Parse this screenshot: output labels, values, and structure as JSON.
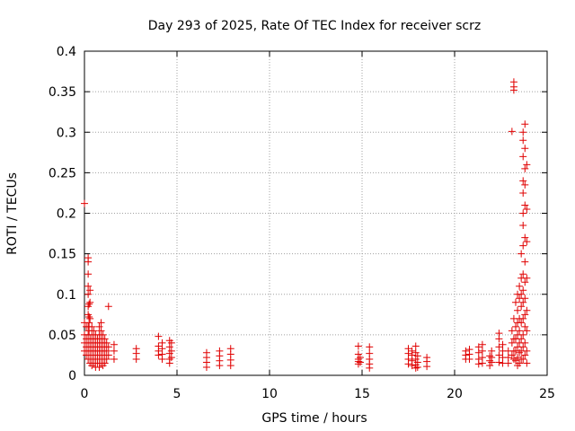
{
  "chart_data": {
    "type": "scatter",
    "title": "Day 293 of 2025, Rate Of TEC Index for receiver scrz",
    "xlabel": "GPS time / hours",
    "ylabel": "ROTI / TECUs",
    "xlim": [
      0,
      25
    ],
    "ylim": [
      0,
      0.4
    ],
    "xticks": [
      0,
      5,
      10,
      15,
      20,
      25
    ],
    "yticks": [
      0,
      0.05,
      0.1,
      0.15,
      0.2,
      0.25,
      0.3,
      0.35,
      0.4
    ],
    "xtick_labels": [
      "0",
      "5",
      "10",
      "15",
      "20",
      "25"
    ],
    "ytick_labels": [
      "0",
      "0.05",
      "0.1",
      "0.15",
      "0.2",
      "0.25",
      "0.3",
      "0.35",
      "0.4"
    ],
    "grid": true,
    "marker": "+",
    "marker_color": "#e00000",
    "points": [
      [
        0.0,
        0.212
      ],
      [
        0.0,
        0.03
      ],
      [
        0.0,
        0.04
      ],
      [
        0.0,
        0.05
      ],
      [
        0.0,
        0.065
      ],
      [
        0.1,
        0.035
      ],
      [
        0.1,
        0.045
      ],
      [
        0.1,
        0.06
      ],
      [
        0.1,
        0.025
      ],
      [
        0.2,
        0.145
      ],
      [
        0.2,
        0.14
      ],
      [
        0.2,
        0.125
      ],
      [
        0.2,
        0.11
      ],
      [
        0.2,
        0.1
      ],
      [
        0.2,
        0.085
      ],
      [
        0.2,
        0.075
      ],
      [
        0.2,
        0.06
      ],
      [
        0.2,
        0.05
      ],
      [
        0.2,
        0.04
      ],
      [
        0.2,
        0.03
      ],
      [
        0.2,
        0.02
      ],
      [
        0.25,
        0.088
      ],
      [
        0.25,
        0.072
      ],
      [
        0.25,
        0.065
      ],
      [
        0.25,
        0.055
      ],
      [
        0.3,
        0.105
      ],
      [
        0.3,
        0.09
      ],
      [
        0.3,
        0.07
      ],
      [
        0.3,
        0.045
      ],
      [
        0.3,
        0.035
      ],
      [
        0.3,
        0.025
      ],
      [
        0.3,
        0.015
      ],
      [
        0.4,
        0.06
      ],
      [
        0.4,
        0.05
      ],
      [
        0.4,
        0.04
      ],
      [
        0.4,
        0.03
      ],
      [
        0.4,
        0.02
      ],
      [
        0.4,
        0.012
      ],
      [
        0.5,
        0.055
      ],
      [
        0.5,
        0.045
      ],
      [
        0.5,
        0.035
      ],
      [
        0.5,
        0.025
      ],
      [
        0.5,
        0.015
      ],
      [
        0.6,
        0.05
      ],
      [
        0.6,
        0.04
      ],
      [
        0.6,
        0.03
      ],
      [
        0.6,
        0.02
      ],
      [
        0.6,
        0.01
      ],
      [
        0.7,
        0.045
      ],
      [
        0.7,
        0.035
      ],
      [
        0.7,
        0.025
      ],
      [
        0.7,
        0.015
      ],
      [
        0.8,
        0.06
      ],
      [
        0.8,
        0.05
      ],
      [
        0.8,
        0.04
      ],
      [
        0.8,
        0.03
      ],
      [
        0.8,
        0.02
      ],
      [
        0.8,
        0.01
      ],
      [
        0.9,
        0.065
      ],
      [
        0.9,
        0.055
      ],
      [
        0.9,
        0.045
      ],
      [
        0.9,
        0.035
      ],
      [
        0.9,
        0.025
      ],
      [
        0.9,
        0.015
      ],
      [
        1.0,
        0.05
      ],
      [
        1.0,
        0.04
      ],
      [
        1.0,
        0.03
      ],
      [
        1.0,
        0.02
      ],
      [
        1.0,
        0.012
      ],
      [
        1.1,
        0.045
      ],
      [
        1.1,
        0.035
      ],
      [
        1.1,
        0.025
      ],
      [
        1.1,
        0.015
      ],
      [
        1.2,
        0.04
      ],
      [
        1.2,
        0.03
      ],
      [
        1.2,
        0.02
      ],
      [
        1.3,
        0.085
      ],
      [
        1.3,
        0.035
      ],
      [
        1.3,
        0.025
      ],
      [
        1.6,
        0.038
      ],
      [
        1.6,
        0.03
      ],
      [
        1.6,
        0.02
      ],
      [
        2.8,
        0.033
      ],
      [
        2.8,
        0.027
      ],
      [
        2.8,
        0.02
      ],
      [
        4.0,
        0.048
      ],
      [
        4.0,
        0.036
      ],
      [
        4.0,
        0.03
      ],
      [
        4.0,
        0.025
      ],
      [
        4.2,
        0.04
      ],
      [
        4.2,
        0.033
      ],
      [
        4.2,
        0.026
      ],
      [
        4.2,
        0.02
      ],
      [
        4.6,
        0.043
      ],
      [
        4.6,
        0.035
      ],
      [
        4.6,
        0.027
      ],
      [
        4.6,
        0.02
      ],
      [
        4.6,
        0.015
      ],
      [
        4.7,
        0.04
      ],
      [
        4.7,
        0.03
      ],
      [
        4.7,
        0.022
      ],
      [
        6.6,
        0.028
      ],
      [
        6.6,
        0.022
      ],
      [
        6.6,
        0.016
      ],
      [
        6.6,
        0.01
      ],
      [
        7.3,
        0.03
      ],
      [
        7.3,
        0.024
      ],
      [
        7.3,
        0.018
      ],
      [
        7.3,
        0.012
      ],
      [
        7.9,
        0.033
      ],
      [
        7.9,
        0.026
      ],
      [
        7.9,
        0.019
      ],
      [
        7.9,
        0.012
      ],
      [
        14.8,
        0.036
      ],
      [
        14.8,
        0.026
      ],
      [
        14.8,
        0.02
      ],
      [
        14.8,
        0.017
      ],
      [
        14.8,
        0.014
      ],
      [
        14.9,
        0.022
      ],
      [
        14.9,
        0.016
      ],
      [
        15.4,
        0.035
      ],
      [
        15.4,
        0.027
      ],
      [
        15.4,
        0.02
      ],
      [
        15.4,
        0.014
      ],
      [
        15.4,
        0.009
      ],
      [
        17.5,
        0.033
      ],
      [
        17.5,
        0.027
      ],
      [
        17.5,
        0.02
      ],
      [
        17.5,
        0.014
      ],
      [
        17.7,
        0.03
      ],
      [
        17.7,
        0.025
      ],
      [
        17.7,
        0.018
      ],
      [
        17.7,
        0.012
      ],
      [
        17.9,
        0.036
      ],
      [
        17.9,
        0.028
      ],
      [
        17.9,
        0.02
      ],
      [
        17.9,
        0.013
      ],
      [
        17.9,
        0.009
      ],
      [
        18.0,
        0.024
      ],
      [
        18.0,
        0.016
      ],
      [
        18.0,
        0.01
      ],
      [
        18.5,
        0.022
      ],
      [
        18.5,
        0.017
      ],
      [
        18.5,
        0.011
      ],
      [
        20.6,
        0.03
      ],
      [
        20.6,
        0.025
      ],
      [
        20.6,
        0.02
      ],
      [
        20.8,
        0.032
      ],
      [
        20.8,
        0.026
      ],
      [
        20.8,
        0.02
      ],
      [
        21.3,
        0.035
      ],
      [
        21.3,
        0.028
      ],
      [
        21.3,
        0.02
      ],
      [
        21.3,
        0.014
      ],
      [
        21.5,
        0.038
      ],
      [
        21.5,
        0.03
      ],
      [
        21.5,
        0.022
      ],
      [
        21.5,
        0.015
      ],
      [
        21.9,
        0.024
      ],
      [
        21.9,
        0.018
      ],
      [
        21.9,
        0.012
      ],
      [
        22.0,
        0.03
      ],
      [
        22.0,
        0.022
      ],
      [
        22.0,
        0.016
      ],
      [
        22.4,
        0.052
      ],
      [
        22.4,
        0.045
      ],
      [
        22.4,
        0.035
      ],
      [
        22.4,
        0.025
      ],
      [
        22.4,
        0.016
      ],
      [
        22.6,
        0.038
      ],
      [
        22.6,
        0.03
      ],
      [
        22.6,
        0.022
      ],
      [
        22.6,
        0.015
      ],
      [
        22.9,
        0.03
      ],
      [
        22.9,
        0.022
      ],
      [
        22.9,
        0.015
      ],
      [
        23.1,
        0.301
      ],
      [
        23.1,
        0.055
      ],
      [
        23.1,
        0.04
      ],
      [
        23.1,
        0.025
      ],
      [
        23.2,
        0.362
      ],
      [
        23.2,
        0.356
      ],
      [
        23.2,
        0.352
      ],
      [
        23.2,
        0.07
      ],
      [
        23.2,
        0.045
      ],
      [
        23.2,
        0.03
      ],
      [
        23.2,
        0.02
      ],
      [
        23.3,
        0.09
      ],
      [
        23.3,
        0.06
      ],
      [
        23.3,
        0.045
      ],
      [
        23.3,
        0.03
      ],
      [
        23.3,
        0.018
      ],
      [
        23.4,
        0.1
      ],
      [
        23.4,
        0.08
      ],
      [
        23.4,
        0.065
      ],
      [
        23.4,
        0.05
      ],
      [
        23.4,
        0.035
      ],
      [
        23.4,
        0.022
      ],
      [
        23.4,
        0.012
      ],
      [
        23.5,
        0.11
      ],
      [
        23.5,
        0.095
      ],
      [
        23.5,
        0.07
      ],
      [
        23.5,
        0.055
      ],
      [
        23.5,
        0.04
      ],
      [
        23.5,
        0.028
      ],
      [
        23.5,
        0.015
      ],
      [
        23.6,
        0.15
      ],
      [
        23.6,
        0.12
      ],
      [
        23.6,
        0.1
      ],
      [
        23.6,
        0.085
      ],
      [
        23.6,
        0.065
      ],
      [
        23.6,
        0.045
      ],
      [
        23.6,
        0.03
      ],
      [
        23.6,
        0.02
      ],
      [
        23.7,
        0.3
      ],
      [
        23.7,
        0.29
      ],
      [
        23.7,
        0.27
      ],
      [
        23.7,
        0.24
      ],
      [
        23.7,
        0.225
      ],
      [
        23.7,
        0.2
      ],
      [
        23.7,
        0.185
      ],
      [
        23.7,
        0.16
      ],
      [
        23.7,
        0.125
      ],
      [
        23.7,
        0.105
      ],
      [
        23.7,
        0.09
      ],
      [
        23.7,
        0.07
      ],
      [
        23.7,
        0.05
      ],
      [
        23.7,
        0.035
      ],
      [
        23.7,
        0.02
      ],
      [
        23.8,
        0.31
      ],
      [
        23.8,
        0.28
      ],
      [
        23.8,
        0.255
      ],
      [
        23.8,
        0.235
      ],
      [
        23.8,
        0.21
      ],
      [
        23.8,
        0.17
      ],
      [
        23.8,
        0.14
      ],
      [
        23.8,
        0.115
      ],
      [
        23.8,
        0.095
      ],
      [
        23.8,
        0.075
      ],
      [
        23.8,
        0.06
      ],
      [
        23.8,
        0.04
      ],
      [
        23.8,
        0.025
      ],
      [
        23.9,
        0.26
      ],
      [
        23.9,
        0.205
      ],
      [
        23.9,
        0.165
      ],
      [
        23.9,
        0.12
      ],
      [
        23.9,
        0.08
      ],
      [
        23.9,
        0.055
      ],
      [
        23.9,
        0.03
      ],
      [
        23.9,
        0.015
      ]
    ]
  }
}
